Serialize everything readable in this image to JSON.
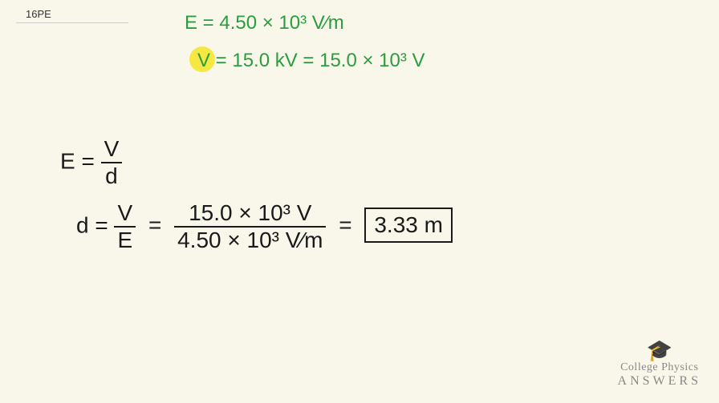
{
  "problem_number": "16PE",
  "given": {
    "line1": "E = 4.50 × 10³ V⁄m",
    "line2": "V = 15.0 kV = 15.0 × 10³ V"
  },
  "work": {
    "formula_base": "E =",
    "frac1_num": "V",
    "frac1_den": "d",
    "formula2_start": "d =",
    "frac2_num": "V",
    "frac2_den": "E",
    "equals1": "=",
    "frac3_num": "15.0 × 10³ V",
    "frac3_den": "4.50 × 10³ V⁄m",
    "equals2": "=",
    "answer": "3.33 m"
  },
  "branding": {
    "line1": "College Physics",
    "line2": "ANSWERS"
  },
  "colors": {
    "background": "#f9f6ea",
    "green_ink": "#2a9d3f",
    "black_ink": "#1a1a1a",
    "highlight": "#f5e842",
    "logo_gray": "#888"
  }
}
